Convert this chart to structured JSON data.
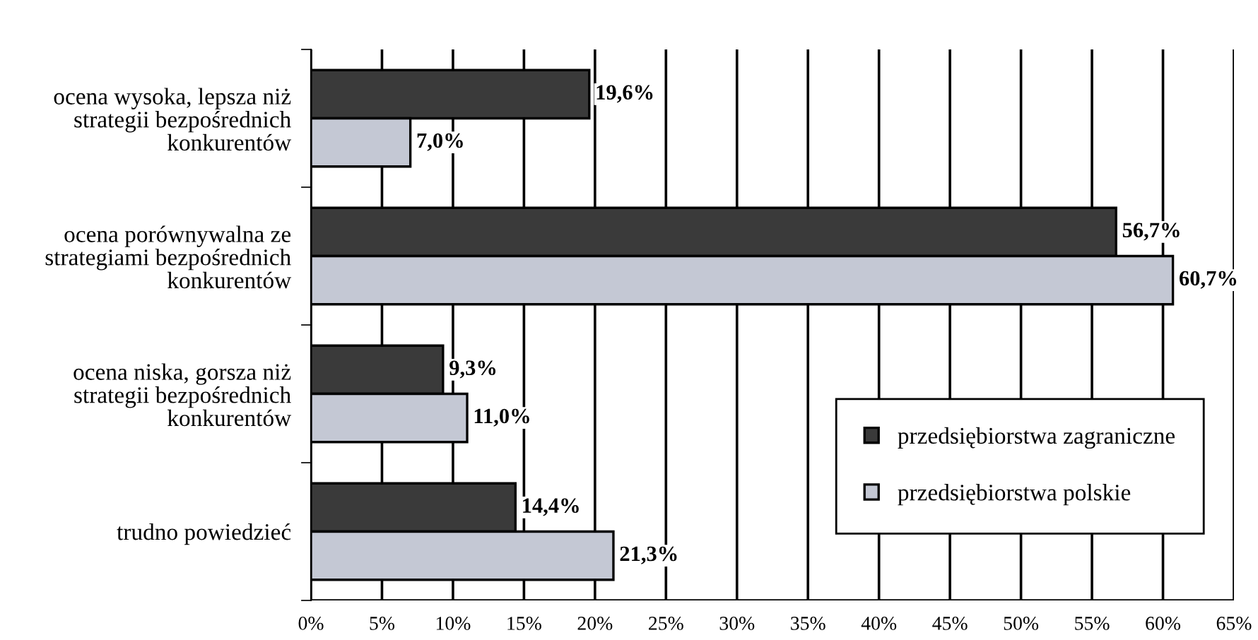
{
  "chart_data": {
    "type": "bar",
    "orientation": "horizontal",
    "categories": [
      "ocena wysoka, lepsza niż\nstrategii bezpośrednich\nkonkurentów",
      "ocena porównywalna ze\nstrategiami bezpośrednich\nkonkurentów",
      "ocena niska, gorsza niż\nstrategii bezpośrednich\nkonkurentów",
      "trudno powiedzieć"
    ],
    "series": [
      {
        "name": "przedsiębiorstwa zagraniczne",
        "color": "#3a3a3a",
        "values": [
          19.6,
          56.7,
          9.3,
          14.4
        ],
        "value_labels": [
          "19,6%",
          "56,7%",
          "9,3%",
          "14,4%"
        ]
      },
      {
        "name": "przedsiębiorstwa polskie",
        "color": "#c4c8d4",
        "values": [
          7.0,
          60.7,
          11.0,
          21.3
        ],
        "value_labels": [
          "7,0%",
          "60,7%",
          "11,0%",
          "21,3%"
        ]
      }
    ],
    "xlim": [
      0,
      65
    ],
    "xticks": [
      {
        "value": 0,
        "label": "0%"
      },
      {
        "value": 5,
        "label": "5%"
      },
      {
        "value": 10,
        "label": "10%"
      },
      {
        "value": 15,
        "label": "15%"
      },
      {
        "value": 20,
        "label": "20%"
      },
      {
        "value": 25,
        "label": "25%"
      },
      {
        "value": 30,
        "label": "30%"
      },
      {
        "value": 35,
        "label": "35%"
      },
      {
        "value": 40,
        "label": "40%"
      },
      {
        "value": 45,
        "label": "45%"
      },
      {
        "value": 50,
        "label": "50%"
      },
      {
        "value": 55,
        "label": "55%"
      },
      {
        "value": 60,
        "label": "60%"
      },
      {
        "value": 65,
        "label": "65%"
      }
    ],
    "grid": "x",
    "legend": "bottom right"
  }
}
